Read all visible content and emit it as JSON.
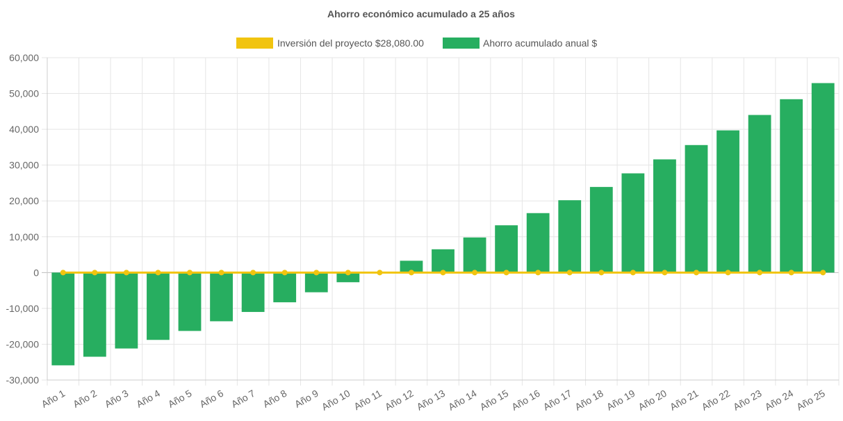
{
  "chart_data": {
    "type": "bar",
    "title": "Ahorro económico acumulado a 25 años",
    "categories": [
      "Año 1",
      "Año 2",
      "Año 3",
      "Año 4",
      "Año 5",
      "Año 6",
      "Año 7",
      "Año 8",
      "Año 9",
      "Año 10",
      "Año 11",
      "Año 12",
      "Año 13",
      "Año 14",
      "Año 15",
      "Año 16",
      "Año 17",
      "Año 18",
      "Año 19",
      "Año 20",
      "Año 21",
      "Año 22",
      "Año 23",
      "Año 24",
      "Año 25"
    ],
    "series": [
      {
        "name": "Inversión del proyecto $28,080.00",
        "type": "line",
        "color": "#f1c40f",
        "values": [
          0,
          0,
          0,
          0,
          0,
          0,
          0,
          0,
          0,
          0,
          0,
          0,
          0,
          0,
          0,
          0,
          0,
          0,
          0,
          0,
          0,
          0,
          0,
          0,
          0
        ]
      },
      {
        "name": "Ahorro acumulado anual $",
        "type": "bar",
        "color": "#27ae60",
        "values": [
          -25900,
          -23500,
          -21200,
          -18800,
          -16300,
          -13600,
          -11000,
          -8300,
          -5500,
          -2700,
          200,
          3300,
          6500,
          9800,
          13200,
          16600,
          20200,
          23900,
          27700,
          31600,
          35600,
          39700,
          44000,
          48400,
          52900
        ]
      }
    ],
    "xlabel": "",
    "ylabel": "",
    "ylim": [
      -30000,
      60000
    ],
    "yticks": [
      "60,000",
      "50,000",
      "40,000",
      "30,000",
      "20,000",
      "10,000",
      "0",
      "-10,000",
      "-20,000",
      "-30,000"
    ],
    "grid": true,
    "legend_position": "top"
  }
}
